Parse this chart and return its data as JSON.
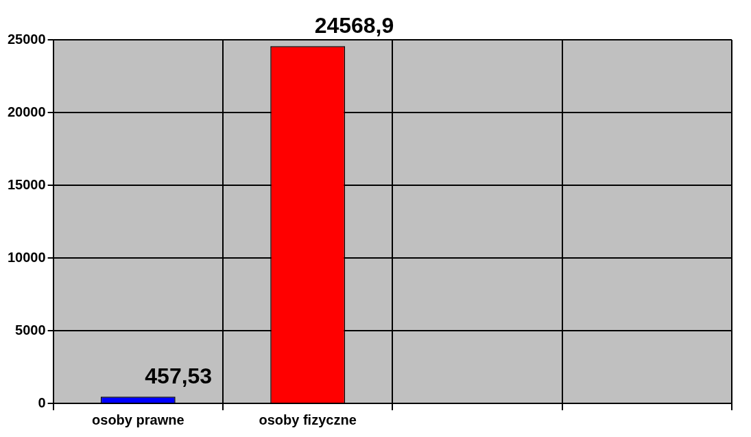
{
  "chart_data": {
    "type": "bar",
    "categories": [
      "osoby prawne",
      "osoby fizyczne",
      null,
      null
    ],
    "values": [
      457.53,
      24568.9,
      null,
      null
    ],
    "colors": [
      "#0000ff",
      "#ff0000",
      "#808080",
      "#808080"
    ],
    "value_labels": [
      "457,53",
      "24568,9",
      null,
      null
    ],
    "ylim": [
      0,
      25000
    ],
    "yticks": [
      0,
      5000,
      10000,
      15000,
      20000,
      25000
    ],
    "grid": true,
    "legend": false
  }
}
